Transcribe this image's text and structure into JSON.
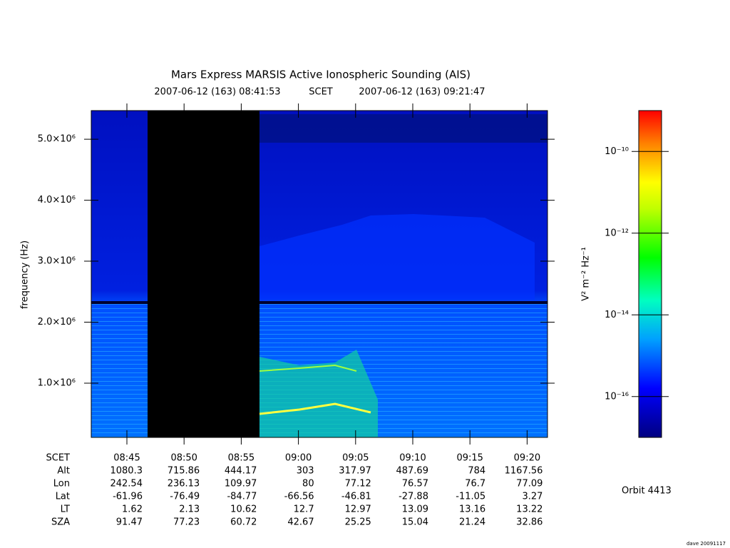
{
  "chart_data": {
    "type": "spectrogram",
    "title": "Mars Express MARSIS Active Ionospheric Sounding (AIS)",
    "subtitle": [
      "2007-06-12 (163) 08:41:53",
      "SCET",
      "2007-06-12 (163) 09:21:47"
    ],
    "y_label": "frequency (Hz)",
    "xlim": [
      521.883,
      561.783
    ],
    "xticks": [
      {
        "value": 525,
        "label": "08:45"
      },
      {
        "value": 530,
        "label": "08:50"
      },
      {
        "value": 535,
        "label": "08:55"
      },
      {
        "value": 540,
        "label": "09:00"
      },
      {
        "value": 545,
        "label": "09:05"
      },
      {
        "value": 550,
        "label": "09:10"
      },
      {
        "value": 555,
        "label": "09:15"
      },
      {
        "value": 560,
        "label": "09:20"
      }
    ],
    "ylim": [
      110000,
      5470000
    ],
    "yticks": [
      {
        "value": 1000000,
        "label": "1.0×10⁶"
      },
      {
        "value": 2000000,
        "label": "2.0×10⁶"
      },
      {
        "value": 3000000,
        "label": "3.0×10⁶"
      },
      {
        "value": 4000000,
        "label": "4.0×10⁶"
      },
      {
        "value": 5000000,
        "label": "5.0×10⁶"
      }
    ],
    "colorbar": {
      "label": "V² m⁻² Hz⁻¹",
      "log": true,
      "lim": [
        1e-17,
        1e-09
      ],
      "ticks": [
        {
          "value": 1e-10,
          "label": "10⁻¹⁰"
        },
        {
          "value": 1e-12,
          "label": "10⁻¹²"
        },
        {
          "value": 1e-14,
          "label": "10⁻¹⁴"
        },
        {
          "value": 1e-16,
          "label": "10⁻¹⁶"
        }
      ]
    },
    "ephemeris": {
      "time_label": "SCET",
      "rows": [
        {
          "label": "Alt",
          "values": [
            1080.3,
            715.86,
            444.17,
            303.0,
            317.97,
            487.69,
            784.0,
            1167.56
          ]
        },
        {
          "label": "Lon",
          "values": [
            242.54,
            236.13,
            109.97,
            80.0,
            77.12,
            76.57,
            76.7,
            77.09
          ]
        },
        {
          "label": "Lat",
          "values": [
            -61.96,
            -76.49,
            -84.77,
            -66.56,
            -46.81,
            -27.88,
            -11.05,
            3.27
          ]
        },
        {
          "label": "LT",
          "values": [
            1.62,
            2.13,
            10.62,
            12.7,
            12.97,
            13.09,
            13.16,
            13.22
          ]
        },
        {
          "label": "SZA",
          "values": [
            91.47,
            77.23,
            60.72,
            42.67,
            25.25,
            15.04,
            21.24,
            32.86
          ]
        }
      ]
    },
    "orbit": "Orbit 4413",
    "footer": "dave 20091117"
  }
}
